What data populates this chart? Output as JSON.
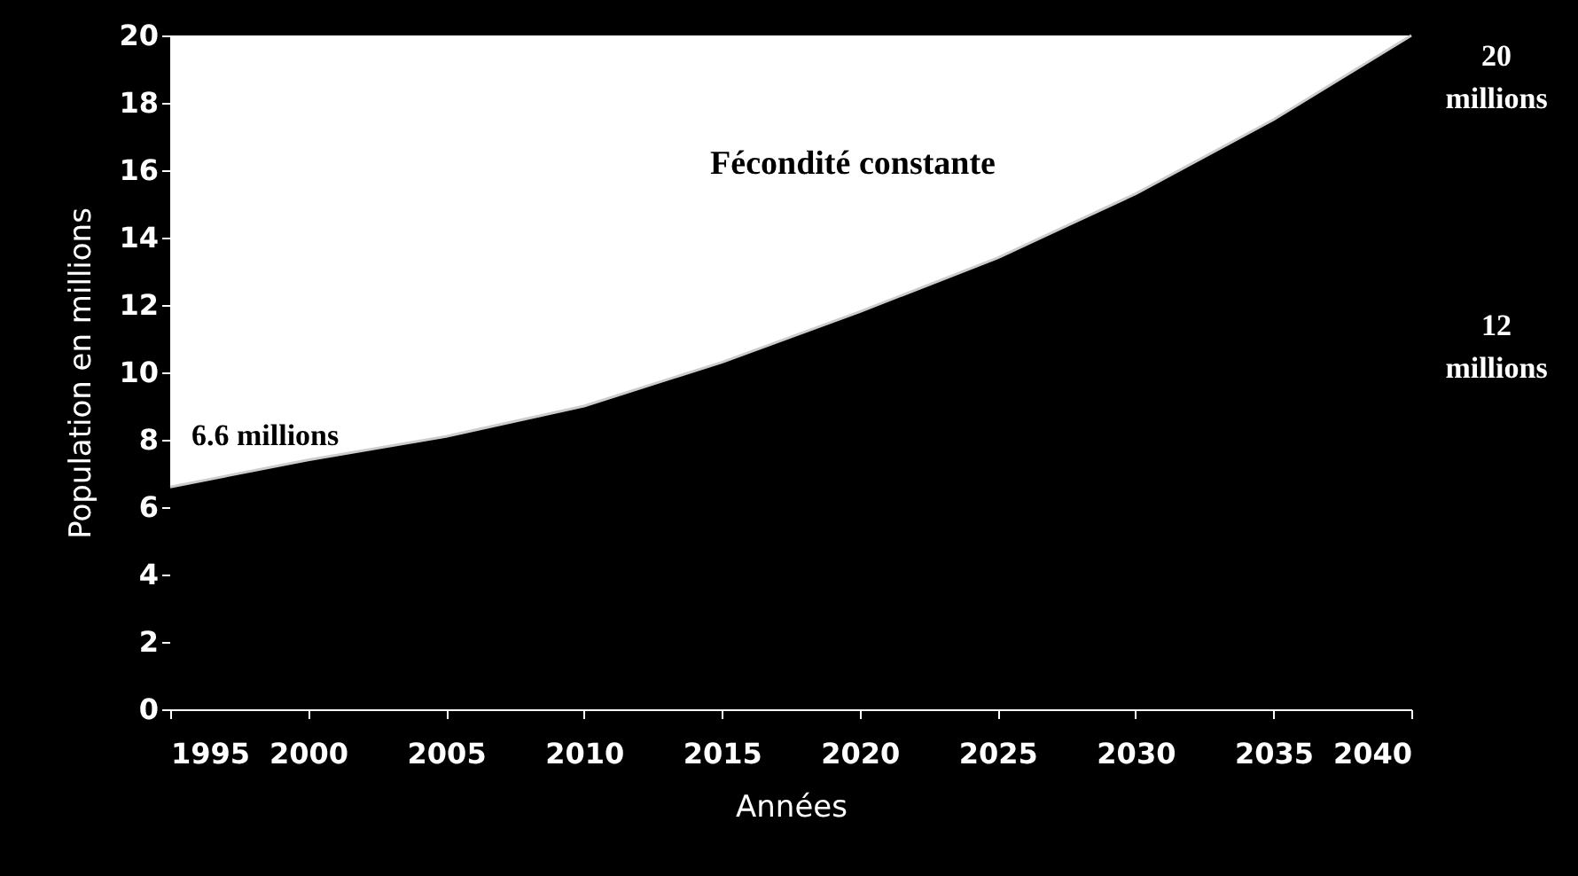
{
  "chart_data": {
    "type": "area",
    "xlabel": "Années",
    "ylabel": "Population en millions",
    "x": [
      1995,
      2000,
      2005,
      2010,
      2015,
      2020,
      2025,
      2030,
      2035,
      2040
    ],
    "series": [
      {
        "name": "Fécondité constante",
        "color": "#000000",
        "values": [
          6.6,
          7.4,
          8.1,
          9.0,
          10.3,
          11.8,
          13.4,
          15.3,
          17.5,
          20
        ]
      }
    ],
    "xlim": [
      1995,
      2040
    ],
    "xticks": [
      1995,
      2000,
      2005,
      2010,
      2015,
      2020,
      2025,
      2030,
      2035,
      2040
    ],
    "ylim": [
      0,
      20
    ],
    "yticks": [
      0,
      2,
      4,
      6,
      8,
      10,
      12,
      14,
      16,
      18,
      20
    ],
    "grid": false,
    "annotations": [
      "6.6 millions",
      "20 millions",
      "12 millions"
    ]
  }
}
